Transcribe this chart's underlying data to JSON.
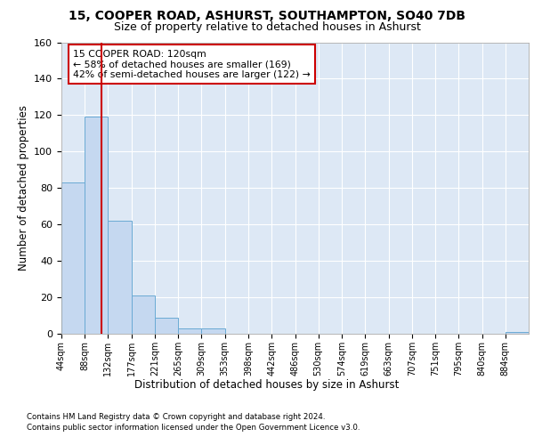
{
  "title_line1": "15, COOPER ROAD, ASHURST, SOUTHAMPTON, SO40 7DB",
  "title_line2": "Size of property relative to detached houses in Ashurst",
  "xlabel": "Distribution of detached houses by size in Ashurst",
  "ylabel": "Number of detached properties",
  "bar_values": [
    83,
    119,
    62,
    21,
    9,
    3,
    3,
    0,
    0,
    0,
    0,
    0,
    0,
    0,
    0,
    0,
    0,
    0,
    0,
    1
  ],
  "bin_edges": [
    44,
    88,
    132,
    177,
    221,
    265,
    309,
    353,
    398,
    442,
    486,
    530,
    574,
    619,
    663,
    707,
    751,
    795,
    840,
    884,
    928
  ],
  "bar_color": "#c5d8f0",
  "bar_edge_color": "#6aaad4",
  "vline_x": 120,
  "vline_color": "#cc0000",
  "annotation_box_color": "#cc0000",
  "annotation_text_line1": "15 COOPER ROAD: 120sqm",
  "annotation_text_line2": "← 58% of detached houses are smaller (169)",
  "annotation_text_line3": "42% of semi-detached houses are larger (122) →",
  "ylim": [
    0,
    160
  ],
  "yticks": [
    0,
    20,
    40,
    60,
    80,
    100,
    120,
    140,
    160
  ],
  "footer_line1": "Contains HM Land Registry data © Crown copyright and database right 2024.",
  "footer_line2": "Contains public sector information licensed under the Open Government Licence v3.0.",
  "bg_color": "#ffffff",
  "plot_bg_color": "#dde8f5",
  "grid_color": "#ffffff"
}
